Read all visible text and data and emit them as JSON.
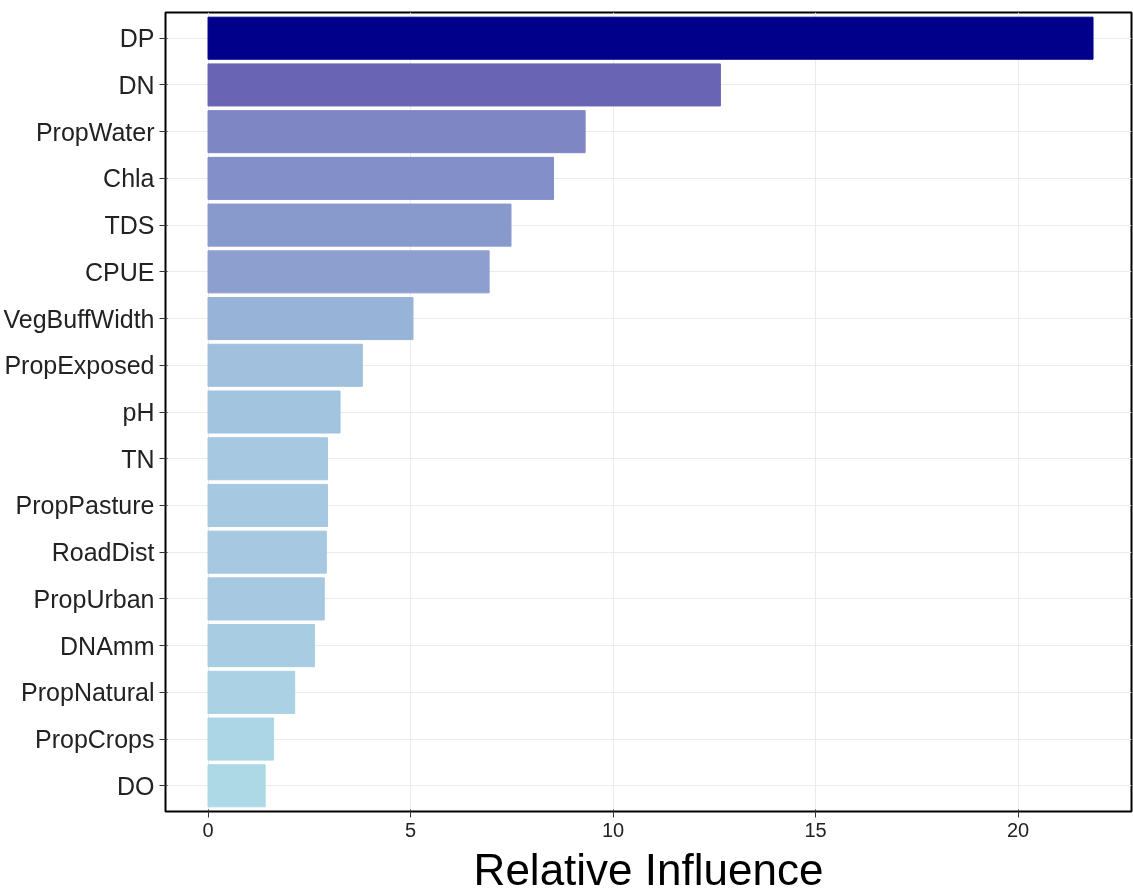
{
  "chart_data": {
    "type": "bar",
    "orientation": "horizontal",
    "xlabel": "Relative Influence",
    "categories": [
      "DP",
      "DN",
      "PropWater",
      "Chla",
      "TDS",
      "CPUE",
      "VegBuffWidth",
      "PropExposed",
      "pH",
      "TN",
      "PropPasture",
      "RoadDist",
      "PropUrban",
      "DNAmm",
      "PropNatural",
      "PropCrops",
      "DO"
    ],
    "values": [
      21.85,
      12.65,
      9.31,
      8.53,
      7.48,
      6.94,
      5.06,
      3.81,
      3.26,
      2.95,
      2.95,
      2.92,
      2.87,
      2.63,
      2.14,
      1.62,
      1.41
    ],
    "colors": [
      "#00008b",
      "#6a64b4",
      "#7e87c4",
      "#838fc8",
      "#8899cc",
      "#8d9fce",
      "#98b3d8",
      "#a0c0dd",
      "#a3c4df",
      "#a6c8e0",
      "#a6c8e0",
      "#a6c8e0",
      "#a6c8e0",
      "#a8cce2",
      "#aad1e4",
      "#acd6e6",
      "#add8e6"
    ],
    "xlim": [
      -1.05,
      22.8
    ],
    "xticks": [
      0,
      5,
      10,
      15,
      20
    ],
    "grid": true
  }
}
